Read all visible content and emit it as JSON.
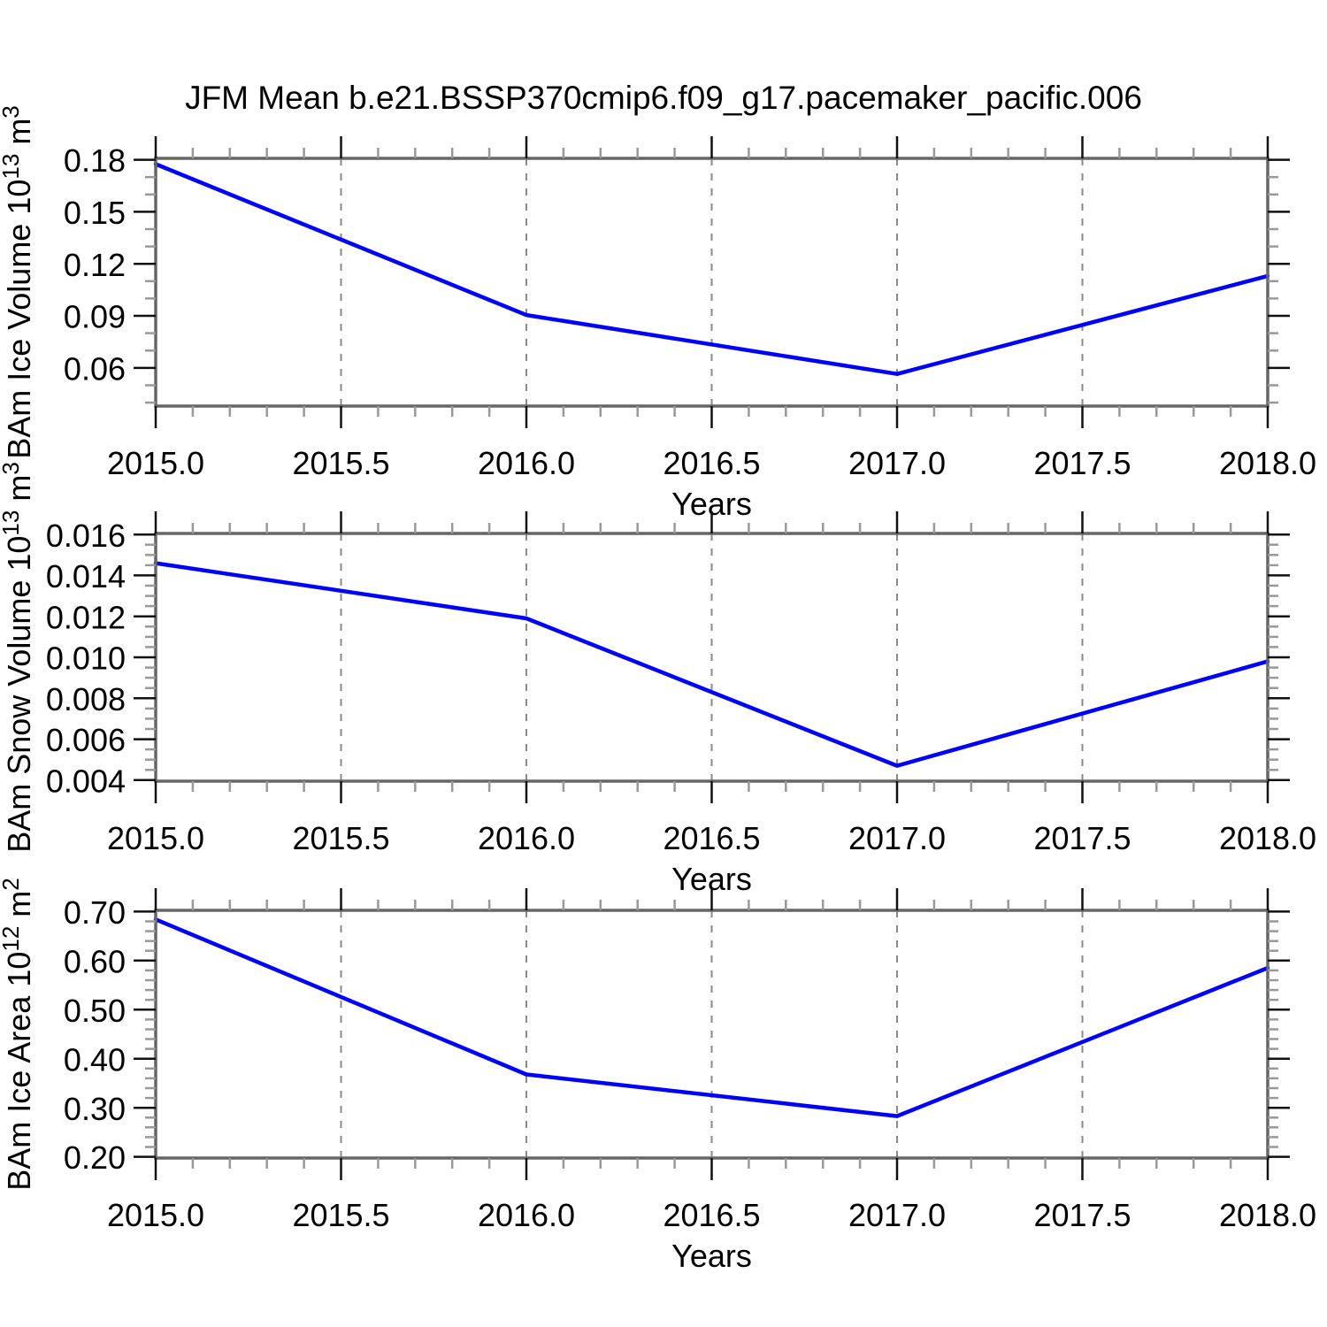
{
  "title": "JFM Mean b.e21.BSSP370cmip6.f09_g17.pacemaker_pacific.006",
  "figure": {
    "background": "#ffffff",
    "line_color": "#0000ff",
    "grid_color": "#8a8a8a",
    "axis_color": "#666666",
    "tick_color": "#111111",
    "minor_tick_color": "#999999",
    "text_color": "#000000"
  },
  "chart_data": [
    {
      "type": "line",
      "panel": "ice-volume",
      "series_name": "BAm Ice Volume",
      "x": [
        2015.0,
        2016.0,
        2017.0,
        2018.0
      ],
      "y": [
        0.1775,
        0.0905,
        0.0565,
        0.113
      ],
      "xlabel": "Years",
      "ylabel_text": "BAm Ice Volume 10^13 m^3",
      "ylabel_parts": [
        {
          "text": "BAm Ice Volume 10"
        },
        {
          "text": "13",
          "sup": true
        },
        {
          "text": " m"
        },
        {
          "text": "3",
          "sup": true
        }
      ],
      "xlim": [
        2015.0,
        2018.0
      ],
      "ylim": [
        0.038,
        0.1808
      ],
      "xtick_values": [
        2015.0,
        2015.5,
        2016.0,
        2016.5,
        2017.0,
        2017.5,
        2018.0
      ],
      "xtick_labels": [
        "2015.0",
        "2015.5",
        "2016.0",
        "2016.5",
        "2017.0",
        "2017.5",
        "2018.0"
      ],
      "ytick_values": [
        0.06,
        0.09,
        0.12,
        0.15,
        0.18
      ],
      "ytick_labels": [
        "0.06",
        "0.09",
        "0.12",
        "0.15",
        "0.18"
      ],
      "x_minor_step": 0.1,
      "y_minor_step": 0.01,
      "grid_x": [
        2015.5,
        2016.0,
        2016.5,
        2017.0,
        2017.5
      ],
      "grid_style": "vertical-dashed",
      "legend": "none"
    },
    {
      "type": "line",
      "panel": "snow-volume",
      "series_name": "BAm Snow Volume",
      "x": [
        2015.0,
        2016.0,
        2017.0,
        2018.0
      ],
      "y": [
        0.0146,
        0.0119,
        0.0047,
        0.0098
      ],
      "xlabel": "Years",
      "ylabel_text": "BAm Snow Volume 10^13 m^3",
      "ylabel_parts": [
        {
          "text": "BAm Snow Volume 10"
        },
        {
          "text": "13",
          "sup": true
        },
        {
          "text": " m"
        },
        {
          "text": "3",
          "sup": true
        }
      ],
      "xlim": [
        2015.0,
        2018.0
      ],
      "ylim": [
        0.00395,
        0.01605
      ],
      "xtick_values": [
        2015.0,
        2015.5,
        2016.0,
        2016.5,
        2017.0,
        2017.5,
        2018.0
      ],
      "xtick_labels": [
        "2015.0",
        "2015.5",
        "2016.0",
        "2016.5",
        "2017.0",
        "2017.5",
        "2018.0"
      ],
      "ytick_values": [
        0.004,
        0.006,
        0.008,
        0.01,
        0.012,
        0.014,
        0.016
      ],
      "ytick_labels": [
        "0.004",
        "0.006",
        "0.008",
        "0.010",
        "0.012",
        "0.014",
        "0.016"
      ],
      "x_minor_step": 0.1,
      "y_minor_step": 0.0005,
      "grid_x": [
        2015.5,
        2016.0,
        2016.5,
        2017.0,
        2017.5
      ],
      "grid_style": "vertical-dashed",
      "legend": "none"
    },
    {
      "type": "line",
      "panel": "ice-area",
      "series_name": "BAm Ice Area",
      "x": [
        2015.0,
        2016.0,
        2017.0,
        2018.0
      ],
      "y": [
        0.684,
        0.368,
        0.283,
        0.585
      ],
      "xlabel": "Years",
      "ylabel_text": "BAm Ice Area 10^12 m^2",
      "ylabel_parts": [
        {
          "text": "BAm Ice Area 10"
        },
        {
          "text": "12",
          "sup": true
        },
        {
          "text": " m"
        },
        {
          "text": "2",
          "sup": true
        }
      ],
      "xlim": [
        2015.0,
        2018.0
      ],
      "ylim": [
        0.1975,
        0.7025
      ],
      "xtick_values": [
        2015.0,
        2015.5,
        2016.0,
        2016.5,
        2017.0,
        2017.5,
        2018.0
      ],
      "xtick_labels": [
        "2015.0",
        "2015.5",
        "2016.0",
        "2016.5",
        "2017.0",
        "2017.5",
        "2018.0"
      ],
      "ytick_values": [
        0.2,
        0.3,
        0.4,
        0.5,
        0.6,
        0.7
      ],
      "ytick_labels": [
        "0.20",
        "0.30",
        "0.40",
        "0.50",
        "0.60",
        "0.70"
      ],
      "x_minor_step": 0.1,
      "y_minor_step": 0.02,
      "grid_x": [
        2015.5,
        2016.0,
        2016.5,
        2017.0,
        2017.5
      ],
      "grid_style": "vertical-dashed",
      "legend": "none"
    }
  ]
}
